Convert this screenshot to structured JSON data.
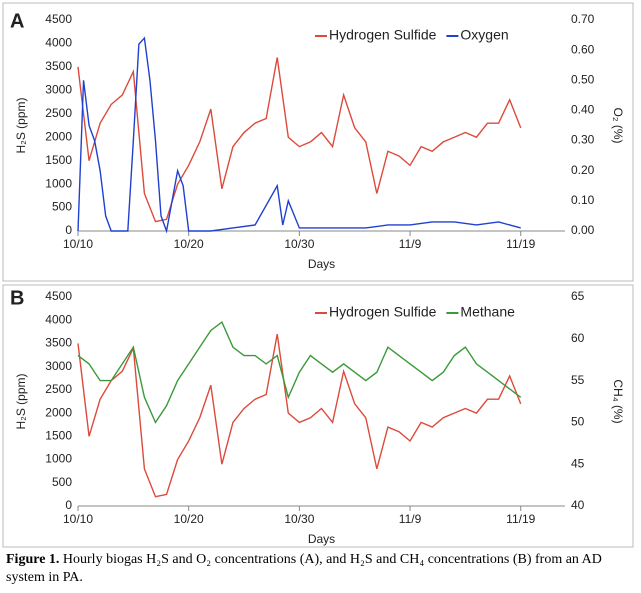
{
  "charts": [
    {
      "type": "line",
      "panel": "A",
      "xlabel": "Days",
      "ylabel": "H₂S (ppm)",
      "y2label": "O₂ (%)",
      "xlim": [
        0,
        44
      ],
      "xticks": [
        {
          "value": 0,
          "label": "10/10"
        },
        {
          "value": 10,
          "label": "10/20"
        },
        {
          "value": 20,
          "label": "10/30"
        },
        {
          "value": 30,
          "label": "11/9"
        },
        {
          "value": 40,
          "label": "11/19"
        }
      ],
      "ylim": [
        0,
        4500
      ],
      "yticks": [
        0,
        500,
        1000,
        1500,
        2000,
        2500,
        3000,
        3500,
        4000,
        4500
      ],
      "y2lim": [
        0,
        0.7
      ],
      "y2ticks": [
        {
          "value": 0,
          "label": "0.00"
        },
        {
          "value": 0.1,
          "label": "0.10"
        },
        {
          "value": 0.2,
          "label": "0.20"
        },
        {
          "value": 0.3,
          "label": "0.30"
        },
        {
          "value": 0.4,
          "label": "0.40"
        },
        {
          "value": 0.5,
          "label": "0.50"
        },
        {
          "value": 0.6,
          "label": "0.60"
        },
        {
          "value": 0.7,
          "label": "0.70"
        }
      ],
      "grid": false,
      "legend": "top-right",
      "series": [
        {
          "name": "Hydrogen Sulfide",
          "color": "#dc4a3c",
          "x": [
            0,
            1,
            2,
            3,
            4,
            5,
            6,
            7,
            8,
            9,
            10,
            11,
            12,
            13,
            14,
            15,
            16,
            17,
            18,
            19,
            20,
            21,
            22,
            23,
            24,
            25,
            26,
            27,
            28,
            29,
            30,
            31,
            32,
            33,
            34,
            35,
            36,
            37,
            38,
            39,
            40
          ],
          "values": [
            3500,
            1500,
            2300,
            2700,
            2900,
            3400,
            800,
            200,
            250,
            1000,
            1400,
            1900,
            2600,
            900,
            1800,
            2100,
            2300,
            2400,
            3700,
            2000,
            1800,
            1900,
            2100,
            1800,
            2900,
            2200,
            1900,
            800,
            1700,
            1600,
            1400,
            1800,
            1700,
            1900,
            2000,
            2100,
            2000,
            2300,
            2300,
            2800,
            2200
          ]
        },
        {
          "name": "Oxygen",
          "color": "#2040d0",
          "axis": "y2",
          "x": [
            0,
            0.5,
            1,
            1.5,
            2,
            2.5,
            3,
            4,
            4.5,
            5,
            5.5,
            6,
            6.5,
            7,
            7.5,
            8,
            8.5,
            9,
            9.5,
            10,
            12,
            14,
            16,
            18,
            18.5,
            19,
            20,
            22,
            24,
            26,
            28,
            30,
            32,
            34,
            36,
            38,
            40
          ],
          "values": [
            0,
            0.5,
            0.35,
            0.3,
            0.2,
            0.05,
            0,
            0,
            0,
            0.3,
            0.62,
            0.64,
            0.5,
            0.3,
            0.05,
            0,
            0.1,
            0.2,
            0.15,
            0,
            0,
            0.01,
            0.02,
            0.15,
            0.02,
            0.1,
            0.01,
            0.01,
            0.01,
            0.01,
            0.02,
            0.02,
            0.03,
            0.03,
            0.02,
            0.03,
            0.01
          ]
        }
      ]
    },
    {
      "type": "line",
      "panel": "B",
      "xlabel": "Days",
      "ylabel": "H₂S (ppm)",
      "y2label": "CH₄ (%)",
      "xlim": [
        0,
        44
      ],
      "xticks": [
        {
          "value": 0,
          "label": "10/10"
        },
        {
          "value": 10,
          "label": "10/20"
        },
        {
          "value": 20,
          "label": "10/30"
        },
        {
          "value": 30,
          "label": "11/9"
        },
        {
          "value": 40,
          "label": "11/19"
        }
      ],
      "ylim": [
        0,
        4500
      ],
      "yticks": [
        0,
        500,
        1000,
        1500,
        2000,
        2500,
        3000,
        3500,
        4000,
        4500
      ],
      "y2lim": [
        40,
        65
      ],
      "y2ticks": [
        40,
        45,
        50,
        55,
        60,
        65
      ],
      "grid": false,
      "legend": "top-right",
      "series": [
        {
          "name": "Hydrogen Sulfide",
          "color": "#dc4a3c",
          "x": [
            0,
            1,
            2,
            3,
            4,
            5,
            6,
            7,
            8,
            9,
            10,
            11,
            12,
            13,
            14,
            15,
            16,
            17,
            18,
            19,
            20,
            21,
            22,
            23,
            24,
            25,
            26,
            27,
            28,
            29,
            30,
            31,
            32,
            33,
            34,
            35,
            36,
            37,
            38,
            39,
            40
          ],
          "values": [
            3500,
            1500,
            2300,
            2700,
            2900,
            3400,
            800,
            200,
            250,
            1000,
            1400,
            1900,
            2600,
            900,
            1800,
            2100,
            2300,
            2400,
            3700,
            2000,
            1800,
            1900,
            2100,
            1800,
            2900,
            2200,
            1900,
            800,
            1700,
            1600,
            1400,
            1800,
            1700,
            1900,
            2000,
            2100,
            2000,
            2300,
            2300,
            2800,
            2200
          ]
        },
        {
          "name": "Methane",
          "color": "#3a9a3a",
          "axis": "y2",
          "x": [
            0,
            1,
            2,
            3,
            4,
            5,
            6,
            7,
            8,
            9,
            10,
            11,
            12,
            13,
            14,
            15,
            16,
            17,
            18,
            19,
            20,
            21,
            22,
            23,
            24,
            25,
            26,
            27,
            28,
            29,
            30,
            31,
            32,
            33,
            34,
            35,
            36,
            37,
            38,
            39,
            40
          ],
          "values": [
            58,
            57,
            55,
            55,
            57,
            59,
            53,
            50,
            52,
            55,
            57,
            59,
            61,
            62,
            59,
            58,
            58,
            57,
            58,
            53,
            56,
            58,
            57,
            56,
            57,
            56,
            55,
            56,
            59,
            58,
            57,
            56,
            55,
            56,
            58,
            59,
            57,
            56,
            55,
            54,
            53
          ]
        }
      ]
    }
  ],
  "caption": {
    "label": "Figure 1.",
    "text": "Hourly biogas H₂S and O₂ concentrations (A), and H₂S and CH₄ concentrations (B) from an AD system in PA."
  }
}
